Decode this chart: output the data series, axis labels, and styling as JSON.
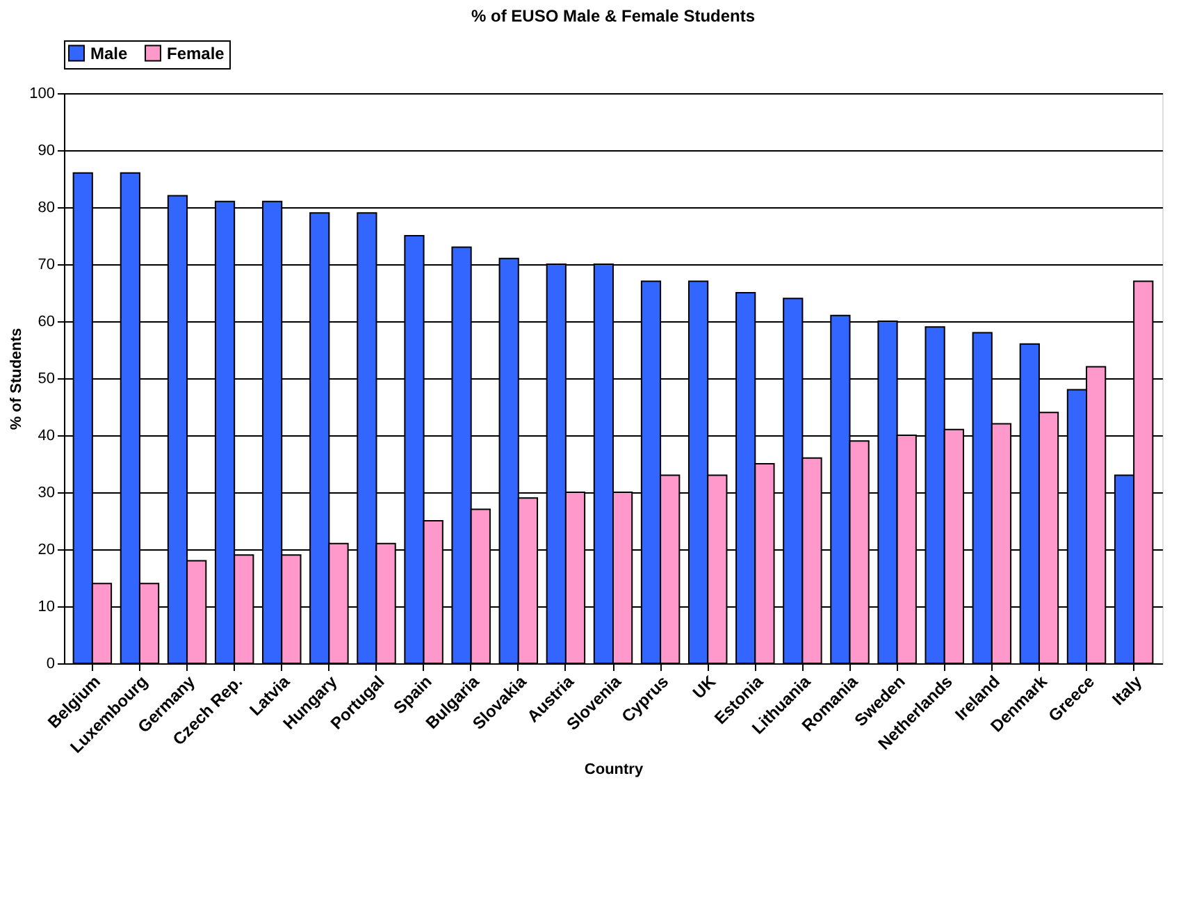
{
  "chart_data": {
    "type": "bar",
    "title": "% of EUSO Male & Female Students",
    "xlabel": "Country",
    "ylabel": "% of Students",
    "categories": [
      "Belgium",
      "Luxembourg",
      "Germany",
      "Czech Rep.",
      "Latvia",
      "Hungary",
      "Portugal",
      "Spain",
      "Bulgaria",
      "Slovakia",
      "Austria",
      "Slovenia",
      "Cyprus",
      "UK",
      "Estonia",
      "Lithuania",
      "Romania",
      "Sweden",
      "Netherlands",
      "Ireland",
      "Denmark",
      "Greece",
      "Italy"
    ],
    "series": [
      {
        "name": "Male",
        "color": "#3366ff",
        "values": [
          86,
          86,
          82,
          81,
          81,
          79,
          79,
          75,
          73,
          71,
          70,
          70,
          67,
          67,
          65,
          64,
          61,
          60,
          59,
          58,
          56,
          48,
          33
        ]
      },
      {
        "name": "Female",
        "color": "#ff99cc",
        "values": [
          14,
          14,
          18,
          19,
          19,
          21,
          21,
          25,
          27,
          29,
          30,
          30,
          33,
          33,
          35,
          36,
          39,
          40,
          41,
          42,
          44,
          52,
          67
        ]
      }
    ],
    "ylim": [
      0,
      100
    ],
    "yticks": [
      0,
      10,
      20,
      30,
      40,
      50,
      60,
      70,
      80,
      90,
      100
    ],
    "grid": "y",
    "legend": "top"
  }
}
